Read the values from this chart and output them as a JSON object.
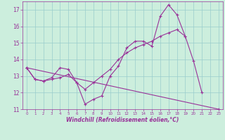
{
  "xlabel": "Windchill (Refroidissement éolien,°C)",
  "background_color": "#cceedd",
  "line_color": "#993399",
  "grid_color": "#99cccc",
  "xlim": [
    -0.5,
    23.5
  ],
  "ylim": [
    11,
    17.5
  ],
  "yticks": [
    11,
    12,
    13,
    14,
    15,
    16,
    17
  ],
  "xticks": [
    0,
    1,
    2,
    3,
    4,
    5,
    6,
    7,
    8,
    9,
    10,
    11,
    12,
    13,
    14,
    15,
    16,
    17,
    18,
    19,
    20,
    21,
    22,
    23
  ],
  "series": [
    {
      "x": [
        0,
        1,
        2,
        3,
        4,
        5,
        6,
        7,
        8,
        9,
        10,
        11,
        12,
        13,
        14,
        15,
        16,
        17,
        18,
        19,
        20,
        21,
        22,
        23
      ],
      "y": [
        13.5,
        12.8,
        12.7,
        12.9,
        13.5,
        13.4,
        12.6,
        11.3,
        11.6,
        11.8,
        13.0,
        13.6,
        14.7,
        15.1,
        15.1,
        14.8,
        16.6,
        17.3,
        16.7,
        15.4,
        13.9,
        12.0,
        null,
        null
      ]
    },
    {
      "x": [
        0,
        23
      ],
      "y": [
        13.5,
        11.0
      ]
    },
    {
      "x": [
        0,
        1,
        2,
        3,
        4,
        5,
        6,
        7,
        8,
        9,
        10,
        11,
        12,
        13,
        14,
        15,
        16,
        17,
        18,
        19,
        20,
        21,
        22,
        23
      ],
      "y": [
        13.5,
        12.8,
        12.7,
        12.8,
        12.9,
        13.1,
        12.6,
        12.2,
        12.6,
        13.0,
        13.4,
        14.0,
        14.4,
        14.7,
        14.9,
        15.1,
        15.4,
        15.6,
        15.8,
        15.4,
        null,
        null,
        null,
        null
      ]
    }
  ]
}
